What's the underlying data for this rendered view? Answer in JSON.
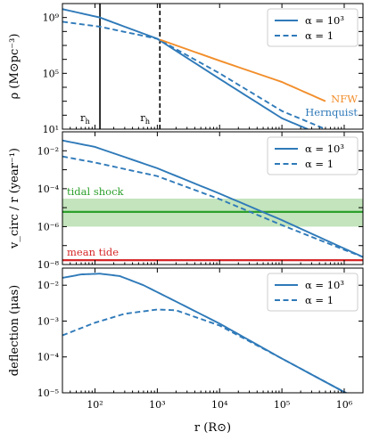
{
  "colors": {
    "blue": "#2f7ab9",
    "orange": "#f28e2b",
    "green": "#2ca02c",
    "green_band": "#b8dfb0",
    "red": "#d62728",
    "black": "#000000"
  },
  "shared_x": {
    "label": "r (R⊙)",
    "scale": "log",
    "range": [
      30,
      2000000
    ],
    "ticks": [
      {
        "value": 100,
        "label": "10²"
      },
      {
        "value": 1000,
        "label": "10³"
      },
      {
        "value": 10000,
        "label": "10⁴"
      },
      {
        "value": 100000,
        "label": "10⁵"
      },
      {
        "value": 1000000,
        "label": "10⁶"
      }
    ]
  },
  "chart_data": [
    {
      "type": "line",
      "panel": "density",
      "ylabel": "ρ (M⊙pc⁻³)",
      "yscale": "log",
      "ylim": [
        10,
        10000000000.0
      ],
      "yticks": [
        {
          "value": 10,
          "label": "10¹"
        },
        {
          "value": 100000,
          "label": "10⁵"
        },
        {
          "value": 1000000000,
          "label": "10⁹"
        }
      ],
      "legend": {
        "position": "top-right",
        "entries": [
          "α = 10³",
          "α = 1"
        ]
      },
      "series": [
        {
          "name": "α = 10³",
          "style": "solid",
          "color": "blue",
          "x": [
            30,
            120,
            1000,
            10000,
            100000,
            260000
          ],
          "y": [
            4000000000.0,
            1000000000.0,
            30000000.0,
            40000.0,
            60,
            10
          ]
        },
        {
          "name": "α = 1",
          "style": "dashed",
          "color": "blue",
          "x": [
            30,
            120,
            1000,
            10000,
            100000,
            500000
          ],
          "y": [
            500000000.0,
            220000000.0,
            30000000.0,
            100000.0,
            200,
            10
          ]
        },
        {
          "name": "NFW",
          "style": "solid",
          "color": "orange",
          "x": [
            1100,
            10000,
            100000,
            500000
          ],
          "y": [
            26000000.0,
            800000.0,
            24000.0,
            1000.0
          ]
        }
      ],
      "vlines": [
        {
          "x": 120,
          "style": "solid",
          "label": "r_h"
        },
        {
          "x": 1100,
          "style": "dashed",
          "label": "r_h"
        }
      ],
      "annotations": [
        {
          "text": "NFW",
          "color": "orange"
        },
        {
          "text": "Hernquist",
          "color": "blue"
        }
      ]
    },
    {
      "type": "line",
      "panel": "velocity",
      "ylabel": "v_circ / r (year⁻¹)",
      "yscale": "log",
      "ylim": [
        1e-08,
        0.1
      ],
      "yticks": [
        {
          "value": 1e-08,
          "label": "10⁻⁸"
        },
        {
          "value": 1e-06,
          "label": "10⁻⁶"
        },
        {
          "value": 0.0001,
          "label": "10⁻⁴"
        },
        {
          "value": 0.01,
          "label": "10⁻²"
        }
      ],
      "legend": {
        "position": "top-right",
        "entries": [
          "α = 10³",
          "α = 1"
        ]
      },
      "series": [
        {
          "name": "α = 10³",
          "style": "solid",
          "color": "blue",
          "x": [
            30,
            100,
            1000,
            10000,
            100000,
            1000000,
            2000000
          ],
          "y": [
            0.035,
            0.016,
            0.0012,
            5.5e-05,
            2.2e-06,
            7e-08,
            2.5e-08
          ]
        },
        {
          "name": "α = 1",
          "style": "dashed",
          "color": "blue",
          "x": [
            30,
            100,
            1000,
            10000,
            100000,
            1000000,
            2000000
          ],
          "y": [
            0.005,
            0.0024,
            0.00046,
            2.8e-05,
            1.2e-06,
            6e-08,
            2.5e-08
          ]
        }
      ],
      "bands": [
        {
          "label": "tidal shock",
          "center": 6e-06,
          "low": 1e-06,
          "high": 3e-05,
          "color": "green"
        },
        {
          "label": "mean tide",
          "value": 1.7e-08,
          "color": "red"
        }
      ]
    },
    {
      "type": "line",
      "panel": "deflection",
      "ylabel": "deflection (μas)",
      "yscale": "log",
      "ylim": [
        1e-05,
        0.03
      ],
      "yticks": [
        {
          "value": 1e-05,
          "label": "10⁻⁵"
        },
        {
          "value": 0.0001,
          "label": "10⁻⁴"
        },
        {
          "value": 0.001,
          "label": "10⁻³"
        },
        {
          "value": 0.01,
          "label": "10⁻²"
        }
      ],
      "legend": {
        "position": "top-right",
        "entries": [
          "α = 10³",
          "α = 1"
        ]
      },
      "series": [
        {
          "name": "α = 10³",
          "style": "solid",
          "color": "blue",
          "x": [
            30,
            60,
            120,
            250,
            600,
            2000,
            10000,
            100000,
            1000000,
            2000000
          ],
          "y": [
            0.016,
            0.02,
            0.021,
            0.018,
            0.01,
            0.0035,
            0.00085,
            9e-05,
            1.05e-05,
            6e-06
          ]
        },
        {
          "name": "α = 1",
          "style": "dashed",
          "color": "blue",
          "x": [
            30,
            100,
            300,
            1000,
            2000,
            10000,
            100000,
            1000000,
            2000000
          ],
          "y": [
            0.0004,
            0.0009,
            0.0016,
            0.0021,
            0.002,
            0.00075,
            9e-05,
            1.05e-05,
            6e-06
          ]
        }
      ]
    }
  ]
}
